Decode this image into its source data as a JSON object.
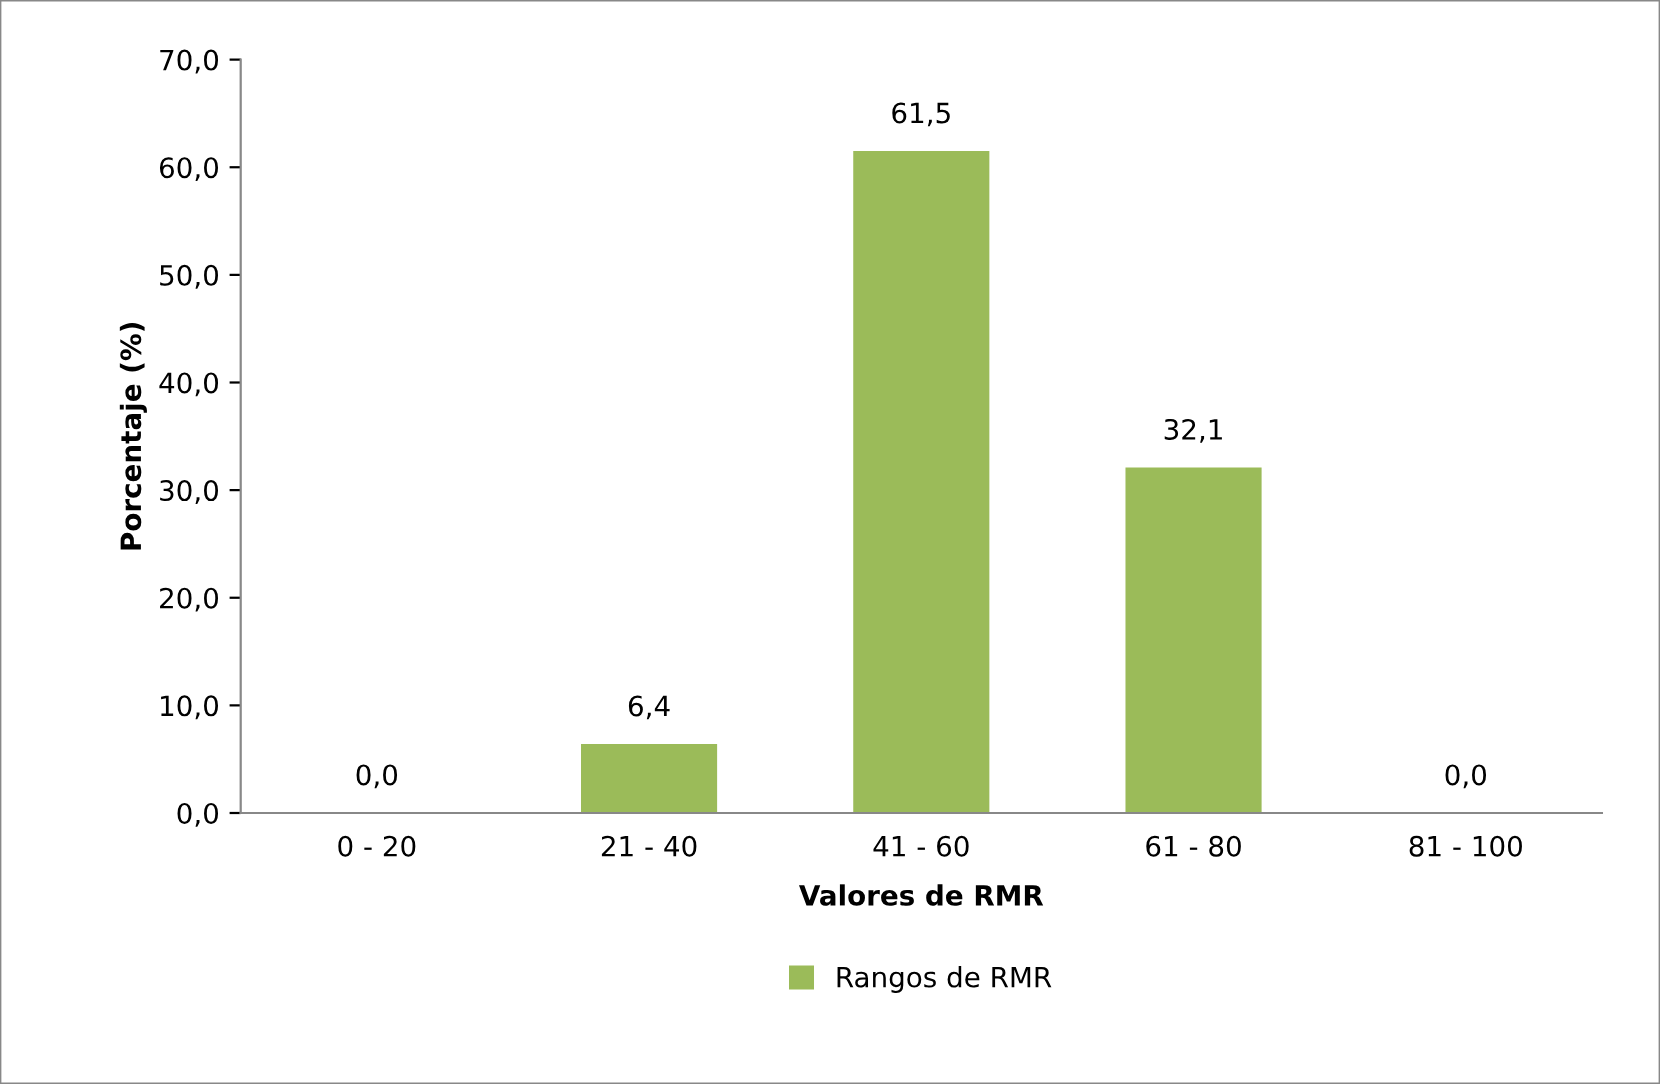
{
  "chart_data": {
    "type": "bar",
    "categories": [
      "0 - 20",
      "21 - 40",
      "41 - 60",
      "61 - 80",
      "81 - 100"
    ],
    "series": [
      {
        "name": "Rangos de RMR",
        "color": "#9bbb59",
        "values": [
          0.0,
          6.4,
          61.5,
          32.1,
          0.0
        ],
        "value_labels": [
          "0,0",
          "6,4",
          "61,5",
          "32,1",
          "0,0"
        ]
      }
    ],
    "xlabel": "Valores de RMR",
    "ylabel": "Porcentaje (%)",
    "ylim": [
      0,
      70
    ],
    "yticks": [
      {
        "value": 0,
        "label": "0,0"
      },
      {
        "value": 10,
        "label": "10,0"
      },
      {
        "value": 20,
        "label": "20,0"
      },
      {
        "value": 30,
        "label": "30,0"
      },
      {
        "value": 40,
        "label": "40,0"
      },
      {
        "value": 50,
        "label": "50,0"
      },
      {
        "value": 60,
        "label": "60,0"
      },
      {
        "value": 70,
        "label": "70,0"
      }
    ],
    "grid": false,
    "legend": "bottom"
  }
}
